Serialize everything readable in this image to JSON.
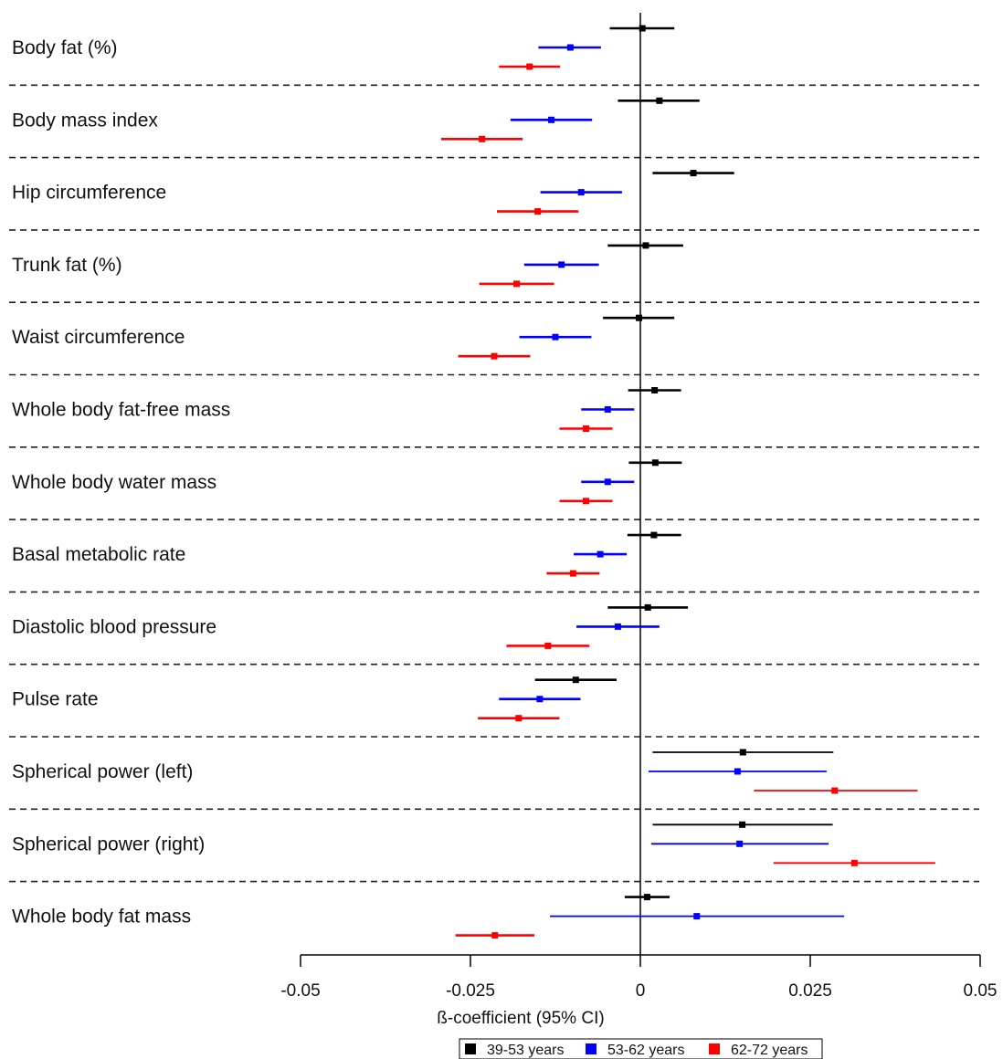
{
  "chart_data": {
    "type": "forest",
    "xlabel": "ß-coefficient (95% CI)",
    "xlim": [
      -0.05,
      0.05
    ],
    "xticks": [
      -0.05,
      -0.025,
      0,
      0.025,
      0.05
    ],
    "xtick_labels": [
      "-0.05",
      "-0.025",
      "0",
      "0.025",
      "0.05"
    ],
    "reference_line": 0,
    "legend": {
      "placement": "bottom-center"
    },
    "series": [
      {
        "name": "39-53 years",
        "color": "#000000"
      },
      {
        "name": "53-62 years",
        "color": "#0000ff"
      },
      {
        "name": "62-72 years",
        "color": "#ff0000"
      }
    ],
    "rows": [
      {
        "label": "Body fat (%)",
        "estimates": [
          {
            "est": 0.0003,
            "lo": -0.0045,
            "hi": 0.005
          },
          {
            "est": -0.0103,
            "lo": -0.015,
            "hi": -0.0058
          },
          {
            "est": -0.0163,
            "lo": -0.0208,
            "hi": -0.0118
          }
        ]
      },
      {
        "label": "Body mass index",
        "estimates": [
          {
            "est": 0.0028,
            "lo": -0.0033,
            "hi": 0.0087
          },
          {
            "est": -0.0131,
            "lo": -0.0191,
            "hi": -0.0071
          },
          {
            "est": -0.0233,
            "lo": -0.0293,
            "hi": -0.0173
          }
        ]
      },
      {
        "label": "Hip circumference",
        "estimates": [
          {
            "est": 0.0078,
            "lo": 0.0018,
            "hi": 0.0138
          },
          {
            "est": -0.0087,
            "lo": -0.0147,
            "hi": -0.0027
          },
          {
            "est": -0.0151,
            "lo": -0.0211,
            "hi": -0.0091
          }
        ]
      },
      {
        "label": "Trunk fat (%)",
        "estimates": [
          {
            "est": 0.0008,
            "lo": -0.0048,
            "hi": 0.0063
          },
          {
            "est": -0.0116,
            "lo": -0.0171,
            "hi": -0.0061
          },
          {
            "est": -0.0182,
            "lo": -0.0237,
            "hi": -0.0127
          }
        ]
      },
      {
        "label": "Waist circumference",
        "estimates": [
          {
            "est": -0.0002,
            "lo": -0.0055,
            "hi": 0.005
          },
          {
            "est": -0.0125,
            "lo": -0.0178,
            "hi": -0.0072
          },
          {
            "est": -0.0215,
            "lo": -0.0268,
            "hi": -0.0162
          }
        ]
      },
      {
        "label": "Whole body fat-free mass",
        "estimates": [
          {
            "est": 0.0021,
            "lo": -0.0018,
            "hi": 0.006
          },
          {
            "est": -0.0048,
            "lo": -0.0087,
            "hi": -0.0009
          },
          {
            "est": -0.008,
            "lo": -0.0119,
            "hi": -0.0041
          }
        ]
      },
      {
        "label": "Whole body water mass",
        "estimates": [
          {
            "est": 0.0022,
            "lo": -0.0017,
            "hi": 0.0061
          },
          {
            "est": -0.0048,
            "lo": -0.0087,
            "hi": -0.0009
          },
          {
            "est": -0.008,
            "lo": -0.0119,
            "hi": -0.0041
          }
        ]
      },
      {
        "label": "Basal metabolic rate",
        "estimates": [
          {
            "est": 0.002,
            "lo": -0.0019,
            "hi": 0.006
          },
          {
            "est": -0.0059,
            "lo": -0.0098,
            "hi": -0.002
          },
          {
            "est": -0.0099,
            "lo": -0.0138,
            "hi": -0.006
          }
        ]
      },
      {
        "label": "Diastolic blood pressure",
        "estimates": [
          {
            "est": 0.0011,
            "lo": -0.0048,
            "hi": 0.007
          },
          {
            "est": -0.0033,
            "lo": -0.0094,
            "hi": 0.0028
          },
          {
            "est": -0.0136,
            "lo": -0.0197,
            "hi": -0.0075
          }
        ]
      },
      {
        "label": "Pulse rate",
        "estimates": [
          {
            "est": -0.0095,
            "lo": -0.0155,
            "hi": -0.0035
          },
          {
            "est": -0.0148,
            "lo": -0.0208,
            "hi": -0.0088
          },
          {
            "est": -0.0179,
            "lo": -0.0239,
            "hi": -0.0119
          }
        ]
      },
      {
        "label": "Spherical power (left)",
        "estimates": [
          {
            "est": 0.0151,
            "lo": 0.0018,
            "hi": 0.0284
          },
          {
            "est": 0.0143,
            "lo": 0.0012,
            "hi": 0.0274
          },
          {
            "est": 0.0286,
            "lo": 0.0167,
            "hi": 0.0408
          }
        ]
      },
      {
        "label": "Spherical power (right)",
        "estimates": [
          {
            "est": 0.015,
            "lo": 0.0018,
            "hi": 0.0283
          },
          {
            "est": 0.0146,
            "lo": 0.0016,
            "hi": 0.0277
          },
          {
            "est": 0.0315,
            "lo": 0.0196,
            "hi": 0.0434
          }
        ]
      },
      {
        "label": "Whole body fat mass",
        "estimates": [
          {
            "est": 0.001,
            "lo": -0.0023,
            "hi": 0.0043
          },
          {
            "est": 0.0083,
            "lo": -0.0133,
            "hi": 0.03
          },
          {
            "est": -0.0214,
            "lo": -0.0272,
            "hi": -0.0156
          }
        ]
      }
    ]
  }
}
